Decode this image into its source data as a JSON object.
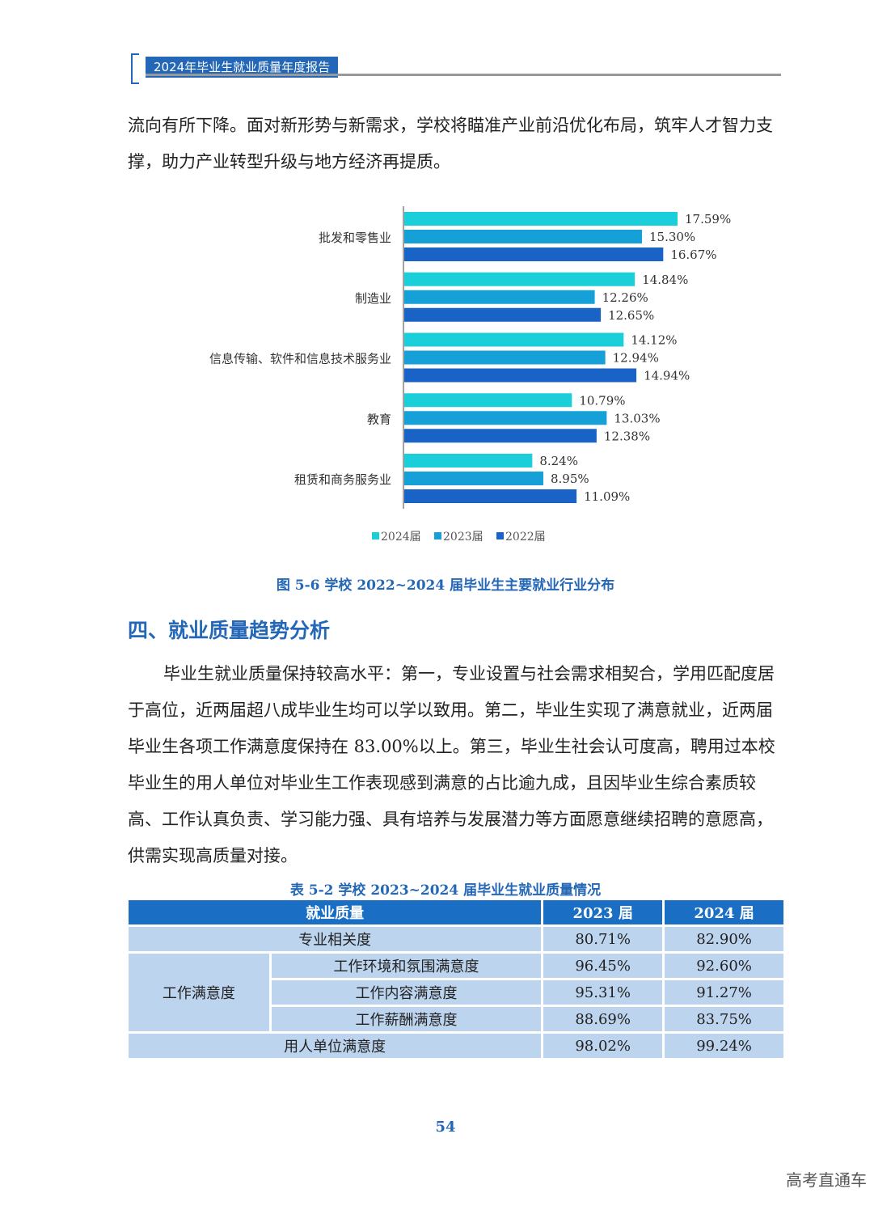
{
  "header": {
    "title": "2024年毕业生就业质量年度报告"
  },
  "intro_text": "流向有所下降。面对新形势与新需求，学校将瞄准产业前沿优化布局，筑牢人才智力支撑，助力产业转型升级与地方经济再提质。",
  "chart_data": {
    "type": "bar",
    "orientation": "horizontal",
    "categories": [
      "批发和零售业",
      "制造业",
      "信息传输、软件和信息技术服务业",
      "教育",
      "租赁和商务服务业"
    ],
    "series": [
      {
        "name": "2024届",
        "values": [
          17.59,
          14.84,
          14.12,
          10.79,
          8.24
        ],
        "labels": [
          "17.59%",
          "14.84%",
          "14.12%",
          "10.79%",
          "8.24%"
        ],
        "color": "#1bcfda"
      },
      {
        "name": "2023届",
        "values": [
          15.3,
          12.26,
          12.94,
          13.03,
          8.95
        ],
        "labels": [
          "15.30%",
          "12.26%",
          "12.94%",
          "13.03%",
          "8.95%"
        ],
        "color": "#16a0d8"
      },
      {
        "name": "2022届",
        "values": [
          16.67,
          12.65,
          14.94,
          12.38,
          11.09
        ],
        "labels": [
          "16.67%",
          "12.65%",
          "14.94%",
          "12.38%",
          "11.09%"
        ],
        "color": "#1a63c6"
      }
    ],
    "unit": "%",
    "xlim": [
      0,
      20
    ],
    "legend_position": "bottom"
  },
  "figure_caption": "图 5-6  学校 2022~2024 届毕业生主要就业行业分布",
  "section_title": "四、就业质量趋势分析",
  "body_text": "毕业生就业质量保持较高水平：第一，专业设置与社会需求相契合，学用匹配度居于高位，近两届超八成毕业生均可以学以致用。第二，毕业生实现了满意就业，近两届毕业生各项工作满意度保持在 83.00%以上。第三，毕业生社会认可度高，聘用过本校毕业生的用人单位对毕业生工作表现感到满意的占比逾九成，且因毕业生综合素质较高、工作认真负责、学习能力强、具有培养与发展潜力等方面愿意继续招聘的意愿高，供需实现高质量对接。",
  "table": {
    "caption": "表 5-2  学校 2023~2024 届毕业生就业质量情况",
    "header": [
      "就业质量",
      "2023 届",
      "2024 届"
    ],
    "row_relevance": {
      "label": "专业相关度",
      "v2023": "80.71%",
      "v2024": "82.90%"
    },
    "satisfaction_group": "工作满意度",
    "satisfaction_rows": [
      {
        "label": "工作环境和氛围满意度",
        "v2023": "96.45%",
        "v2024": "92.60%"
      },
      {
        "label": "工作内容满意度",
        "v2023": "95.31%",
        "v2024": "91.27%"
      },
      {
        "label": "工作薪酬满意度",
        "v2023": "88.69%",
        "v2024": "83.75%"
      }
    ],
    "row_employer": {
      "label": "用人单位满意度",
      "v2023": "98.02%",
      "v2024": "99.24%"
    }
  },
  "page_number": "54",
  "watermark": "高考直通车"
}
